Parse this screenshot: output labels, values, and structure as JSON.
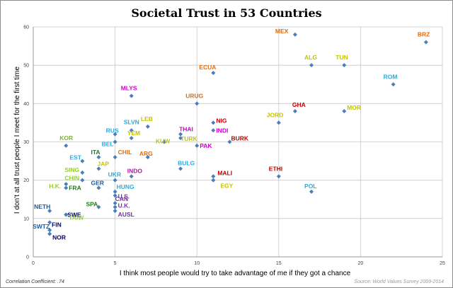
{
  "chart_data": {
    "type": "scatter",
    "title": "Societal Trust in 53 Countries",
    "xlabel": "I think most people would try to take advantage of me if they got a chance",
    "ylabel": "I don't at all trust people I meet for the first time",
    "xlim": [
      0,
      25
    ],
    "ylim": [
      0,
      60
    ],
    "x_ticks": [
      0,
      5,
      10,
      15,
      20,
      25
    ],
    "y_ticks": [
      0,
      10,
      20,
      30,
      40,
      50,
      60
    ],
    "grid": true,
    "marker_color": "#4a7ebb",
    "points": [
      {
        "label": "MEX",
        "x": 16.0,
        "y": 58.0,
        "color": "#e46c0a"
      },
      {
        "label": "BRZ",
        "x": 24.0,
        "y": 56.0,
        "color": "#e46c0a"
      },
      {
        "label": "ALG",
        "x": 17.0,
        "y": 50.0,
        "color": "#c3c30a"
      },
      {
        "label": "TUN",
        "x": 19.0,
        "y": 50.0,
        "color": "#c3c30a"
      },
      {
        "label": "ECUA",
        "x": 11.0,
        "y": 48.0,
        "color": "#e46c0a"
      },
      {
        "label": "ROM",
        "x": 22.0,
        "y": 45.0,
        "color": "#31a9d8"
      },
      {
        "label": "MLYS",
        "x": 6.0,
        "y": 42.0,
        "color": "#cc00cc"
      },
      {
        "label": "URUG",
        "x": 10.0,
        "y": 40.0,
        "color": "#e46c0a"
      },
      {
        "label": "GHA",
        "x": 16.0,
        "y": 38.0,
        "color": "#c00000"
      },
      {
        "label": "MOR",
        "x": 19.0,
        "y": 38.0,
        "color": "#c3c30a"
      },
      {
        "label": "JORD",
        "x": 15.0,
        "y": 35.0,
        "color": "#c3c30a"
      },
      {
        "label": "NIG",
        "x": 11.0,
        "y": 35.0,
        "color": "#c00000"
      },
      {
        "label": "SLVN",
        "x": 6.0,
        "y": 33.0,
        "color": "#31a9d8"
      },
      {
        "label": "LEB",
        "x": 7.0,
        "y": 34.0,
        "color": "#c3c30a"
      },
      {
        "label": "INDI",
        "x": 11.0,
        "y": 33.0,
        "color": "#cc00cc"
      },
      {
        "label": "THAI",
        "x": 9.0,
        "y": 32.0,
        "color": "#cc00cc"
      },
      {
        "label": "RUS",
        "x": 5.0,
        "y": 32.0,
        "color": "#31a9d8"
      },
      {
        "label": "YEM",
        "x": 6.0,
        "y": 31.0,
        "color": "#c3c30a"
      },
      {
        "label": "TURK",
        "x": 9.0,
        "y": 31.0,
        "color": "#c3c30a"
      },
      {
        "label": "KUW",
        "x": 8.0,
        "y": 30.0,
        "color": "#c3c30a"
      },
      {
        "label": "BURK",
        "x": 12.0,
        "y": 30.0,
        "color": "#c00000"
      },
      {
        "label": "BEL",
        "x": 5.0,
        "y": 30.0,
        "color": "#31a9d8"
      },
      {
        "label": "KOR",
        "x": 2.0,
        "y": 29.0,
        "color": "#76b82a"
      },
      {
        "label": "PAK",
        "x": 10.0,
        "y": 29.0,
        "color": "#cc00cc"
      },
      {
        "label": "ARG",
        "x": 7.0,
        "y": 26.0,
        "color": "#e46c0a"
      },
      {
        "label": "ITA",
        "x": 4.0,
        "y": 26.0,
        "color": "#1e7a1e"
      },
      {
        "label": "CHIL",
        "x": 5.0,
        "y": 26.0,
        "color": "#e46c0a"
      },
      {
        "label": "EST",
        "x": 3.0,
        "y": 25.0,
        "color": "#31a9d8"
      },
      {
        "label": "BULG",
        "x": 9.0,
        "y": 23.0,
        "color": "#31a9d8"
      },
      {
        "label": "JAP",
        "x": 4.0,
        "y": 23.0,
        "color": "#c3c30a"
      },
      {
        "label": "INDO",
        "x": 6.0,
        "y": 21.0,
        "color": "#cc00cc"
      },
      {
        "label": "SING",
        "x": 3.0,
        "y": 22.0,
        "color": "#9acd32"
      },
      {
        "label": "MALI",
        "x": 11.0,
        "y": 21.0,
        "color": "#c00000"
      },
      {
        "label": "ETHI",
        "x": 15.0,
        "y": 21.0,
        "color": "#c00000"
      },
      {
        "label": "UKR",
        "x": 5.0,
        "y": 20.0,
        "color": "#31a9d8"
      },
      {
        "label": "CHIN",
        "x": 3.0,
        "y": 20.0,
        "color": "#9acd32"
      },
      {
        "label": "EGY",
        "x": 11.0,
        "y": 20.0,
        "color": "#c3c30a"
      },
      {
        "label": "GER",
        "x": 4.0,
        "y": 18.0,
        "color": "#1f5a99"
      },
      {
        "label": "FRA",
        "x": 2.0,
        "y": 18.0,
        "color": "#1e7a1e"
      },
      {
        "label": "H.K.",
        "x": 2.0,
        "y": 19.0,
        "color": "#9acd32"
      },
      {
        "label": "HUNG",
        "x": 5.0,
        "y": 17.0,
        "color": "#31a9d8"
      },
      {
        "label": "POL",
        "x": 17.0,
        "y": 17.0,
        "color": "#31a9d8"
      },
      {
        "label": "U.S.",
        "x": 5.0,
        "y": 16.0,
        "color": "#7030a0"
      },
      {
        "label": "SPA",
        "x": 4.0,
        "y": 13.0,
        "color": "#1e7a1e"
      },
      {
        "label": "CAN",
        "x": 5.0,
        "y": 14.0,
        "color": "#7030a0"
      },
      {
        "label": "U.K.",
        "x": 5.0,
        "y": 13.0,
        "color": "#7030a0"
      },
      {
        "label": "AUSL",
        "x": 5.0,
        "y": 12.0,
        "color": "#7030a0"
      },
      {
        "label": "NETH",
        "x": 1.0,
        "y": 12.0,
        "color": "#1f5a99"
      },
      {
        "label": "SWE",
        "x": 2.0,
        "y": 11.0,
        "color": "#000080"
      },
      {
        "label": "TAIW",
        "x": 2.0,
        "y": 11.0,
        "color": "#9acd32"
      },
      {
        "label": "FIN",
        "x": 1.0,
        "y": 9.0,
        "color": "#000080"
      },
      {
        "label": "SWTZ",
        "x": 1.0,
        "y": 7.0,
        "color": "#1f5a99"
      },
      {
        "label": "NOR",
        "x": 1.0,
        "y": 6.0,
        "color": "#000080"
      }
    ],
    "note": "Correlation Coefficient: .74",
    "source": "Source: World Values Survey 2009-2014"
  }
}
